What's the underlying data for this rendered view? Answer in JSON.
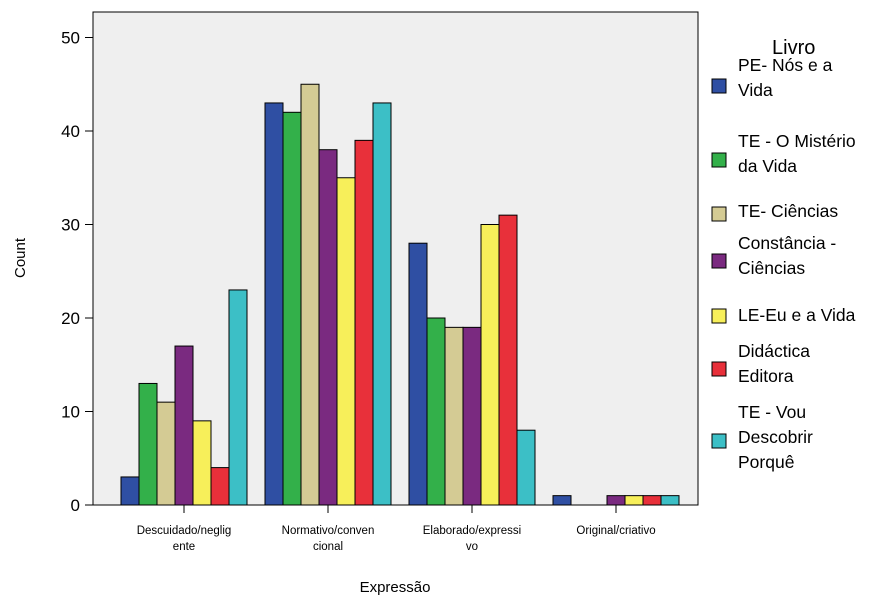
{
  "chart_data": {
    "type": "bar",
    "title": "",
    "xlabel": "Expressão",
    "ylabel": "Count",
    "ylim": [
      0,
      52
    ],
    "yticks": [
      0,
      10,
      20,
      30,
      40,
      50
    ],
    "grid": false,
    "legend_position": "right",
    "legend_title": "Livro",
    "categories": [
      [
        "Descuidado/neglig",
        "ente"
      ],
      [
        "Normativo/conven",
        "cional"
      ],
      [
        "Elaborado/expressi",
        "vo"
      ],
      [
        "Original/criativo"
      ]
    ],
    "series": [
      {
        "name": "PE- Nós e a Vida",
        "legend_lines": [
          "PE- Nós e a",
          "Vida"
        ],
        "color": "#2f4fa3",
        "values": [
          3,
          43,
          28,
          1
        ]
      },
      {
        "name": "TE - O Mistério da Vida",
        "legend_lines": [
          "TE - O Mistério",
          "da Vida"
        ],
        "color": "#33b04a",
        "values": [
          13,
          42,
          20,
          0
        ]
      },
      {
        "name": "TE- Ciências",
        "legend_lines": [
          "TE- Ciências"
        ],
        "color": "#d4cb94",
        "values": [
          11,
          45,
          19,
          0
        ]
      },
      {
        "name": "Constância - Ciências",
        "legend_lines": [
          "Constância -",
          "Ciências"
        ],
        "color": "#7a2a80",
        "values": [
          17,
          38,
          19,
          1
        ]
      },
      {
        "name": "LE-Eu e a Vida",
        "legend_lines": [
          "LE-Eu e a Vida"
        ],
        "color": "#f7ef5a",
        "values": [
          9,
          35,
          30,
          1
        ]
      },
      {
        "name": "Didáctica Editora",
        "legend_lines": [
          "Didáctica",
          "Editora"
        ],
        "color": "#e8303a",
        "values": [
          4,
          39,
          31,
          1
        ]
      },
      {
        "name": "TE - Vou Descobrir Porquê",
        "legend_lines": [
          "TE - Vou",
          "Descobrir",
          "Porquê"
        ],
        "color": "#3cbfc6",
        "values": [
          23,
          43,
          8,
          1
        ]
      }
    ]
  },
  "colors": {
    "plot_background": "#efefef",
    "axis": "#000000"
  }
}
